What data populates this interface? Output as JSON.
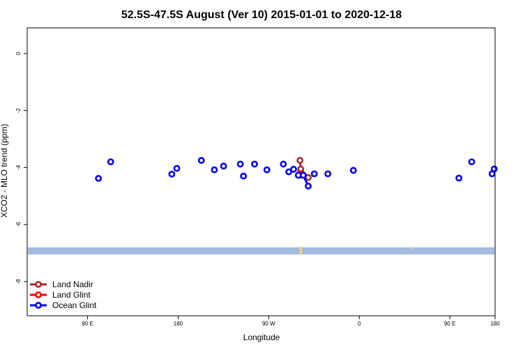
{
  "chart_data": {
    "type": "line",
    "title": "52.5S-47.5S August (Ver 10)   2015-01-01 to 2020-12-18",
    "xlabel": "Longitude",
    "ylabel": "XCO2 - MLO trend (ppm)",
    "xlim": [
      -130,
      180
    ],
    "ylim": [
      -9.2,
      0.9
    ],
    "x_ticks": [
      {
        "value": -90,
        "label": "90 E"
      },
      {
        "value": -30,
        "label": "180"
      },
      {
        "value": 30,
        "label": "90 W"
      },
      {
        "value": 90,
        "label": "0"
      },
      {
        "value": 150,
        "label": "90 E"
      },
      {
        "value": 180,
        "label": "180"
      }
    ],
    "y_ticks": [
      {
        "value": 0,
        "label": "0"
      },
      {
        "value": -2,
        "label": "-2"
      },
      {
        "value": -4,
        "label": "-4"
      },
      {
        "value": -6,
        "label": "-6"
      },
      {
        "value": -8,
        "label": "-8"
      }
    ],
    "grid": false,
    "legend_position": "bottom-left",
    "colors": {
      "land_band": "#a4bce0",
      "land_feature": "#f2d27a"
    },
    "series": [
      {
        "name": "Land Nadir",
        "color": "#a52a2a",
        "points": [
          [
            50.7,
            -3.75
          ],
          [
            51.2,
            -4.05
          ],
          [
            56.2,
            -4.35
          ]
        ]
      },
      {
        "name": "Land Glint",
        "color": "#ff0000",
        "points": [
          [
            50.6,
            -4.22
          ],
          [
            51.4,
            -4.27
          ]
        ]
      },
      {
        "name": "Ocean Glint",
        "color": "#0000ee",
        "points": [
          [
            -82.8,
            -4.38
          ],
          [
            -74.7,
            -3.8
          ],
          [
            -34.2,
            -4.23
          ],
          [
            -30.9,
            -4.03
          ],
          [
            -14.6,
            -3.75
          ],
          [
            -6.0,
            -4.08
          ],
          [
            0.1,
            -3.95
          ],
          [
            11.2,
            -3.88
          ],
          [
            13.3,
            -4.3
          ],
          [
            20.6,
            -3.88
          ],
          [
            28.8,
            -4.08
          ],
          [
            39.7,
            -3.88
          ],
          [
            43.3,
            -4.15
          ],
          [
            46.5,
            -4.06
          ],
          [
            49.6,
            -4.27
          ],
          [
            52.9,
            -4.27
          ],
          [
            56.2,
            -4.65
          ],
          [
            60.2,
            -4.22
          ],
          [
            69.2,
            -4.22
          ],
          [
            86.1,
            -4.1
          ],
          [
            156.0,
            -4.37
          ],
          [
            164.5,
            -3.8
          ],
          [
            178.0,
            -4.22
          ],
          [
            179.4,
            -4.05
          ]
        ],
        "segments": [
          [
            47.0,
            56.5
          ],
          [
            57.0,
            61.0
          ]
        ]
      }
    ]
  }
}
